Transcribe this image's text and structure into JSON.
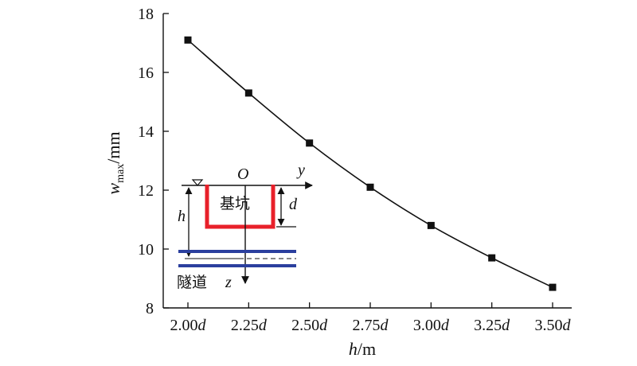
{
  "chart_data": {
    "type": "line",
    "x_tick_labels": [
      {
        "num": "2.00",
        "unit": "d"
      },
      {
        "num": "2.25",
        "unit": "d"
      },
      {
        "num": "2.50",
        "unit": "d"
      },
      {
        "num": "2.75",
        "unit": "d"
      },
      {
        "num": "3.00",
        "unit": "d"
      },
      {
        "num": "3.25",
        "unit": "d"
      },
      {
        "num": "3.50",
        "unit": "d"
      }
    ],
    "x": [
      2.0,
      2.25,
      2.5,
      2.75,
      3.0,
      3.25,
      3.5
    ],
    "series": [
      {
        "values": [
          17.1,
          15.3,
          13.6,
          12.1,
          10.8,
          9.7,
          8.7
        ],
        "color": "#111111",
        "marker": "square"
      }
    ],
    "xlabel": {
      "var": "h",
      "unit": "/m"
    },
    "ylabel": {
      "var": "w",
      "sub": "max",
      "unit": "/mm"
    },
    "xlim": [
      2.0,
      3.5
    ],
    "ylim": [
      8,
      18
    ],
    "y_ticks": [
      8,
      10,
      12,
      14,
      16,
      18
    ],
    "grid": false
  },
  "inset": {
    "origin_label": "O",
    "y_axis_label": "y",
    "z_axis_label": "z",
    "h_label": "h",
    "d_label": "d",
    "pit_label": "基坑",
    "tunnel_label": "隧道",
    "pit_color": "#e8202a",
    "tunnel_color": "#2b3f9e"
  }
}
